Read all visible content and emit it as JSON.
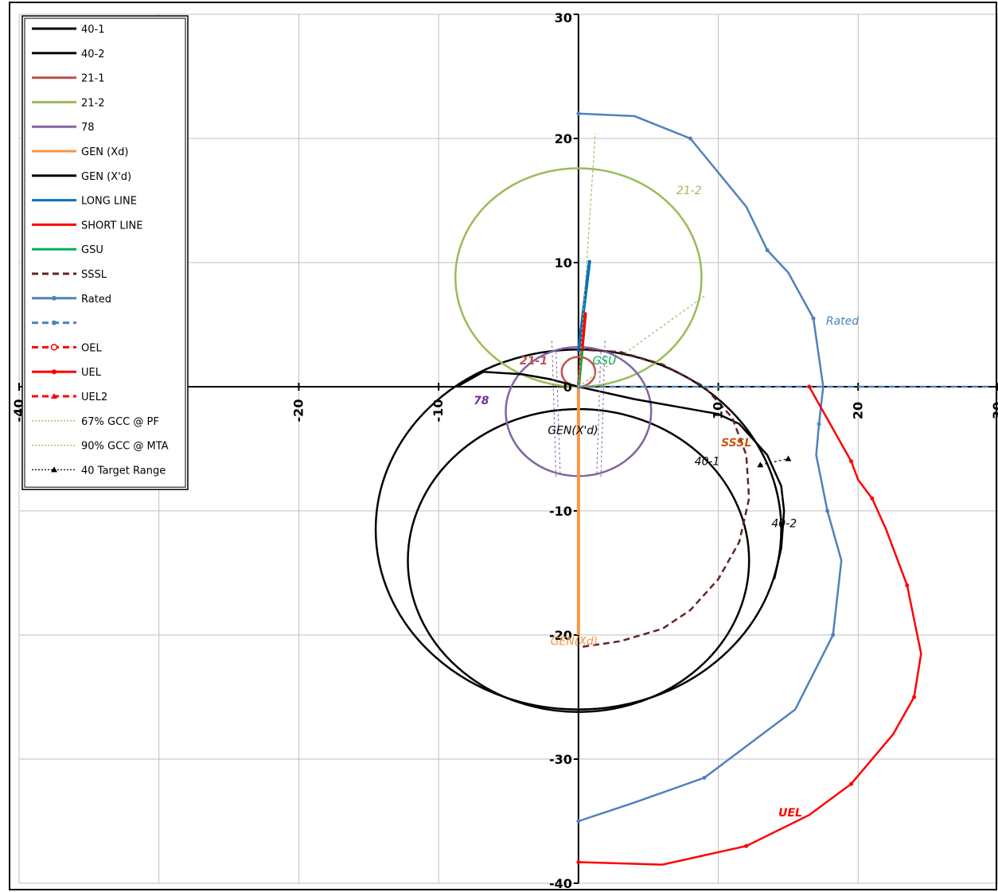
{
  "chart_data": {
    "type": "line",
    "xlim": [
      -40,
      30
    ],
    "ylim": [
      -40,
      30
    ],
    "x_ticks": [
      -40,
      -20,
      -10,
      0,
      10,
      20,
      30
    ],
    "x_tick_labels": [
      "-40",
      "-20",
      "-10",
      "0",
      "10",
      "20",
      "30"
    ],
    "y_ticks": [
      30,
      20,
      10,
      0,
      -10,
      -20,
      -30,
      -40
    ],
    "y_tick_labels": [
      "30",
      "20",
      "10",
      "0",
      "-10",
      "-20",
      "-30",
      "-40"
    ],
    "grid": true,
    "legend_position": "top-left",
    "legend": [
      {
        "label": "40-1",
        "color": "#000000",
        "dash": "solid",
        "marker": "none"
      },
      {
        "label": "40-2",
        "color": "#000000",
        "dash": "solid",
        "marker": "none"
      },
      {
        "label": "21-1",
        "color": "#c0504d",
        "dash": "solid",
        "marker": "none"
      },
      {
        "label": "21-2",
        "color": "#9bbb59",
        "dash": "solid",
        "marker": "none"
      },
      {
        "label": "78",
        "color": "#8064a2",
        "dash": "solid",
        "marker": "none"
      },
      {
        "label": "GEN (Xd)",
        "color": "#f79646",
        "dash": "solid",
        "marker": "none"
      },
      {
        "label": "GEN (X'd)",
        "color": "#000000",
        "dash": "solid",
        "marker": "none"
      },
      {
        "label": "LONG LINE",
        "color": "#0070c0",
        "dash": "solid",
        "marker": "none"
      },
      {
        "label": "SHORT LINE",
        "color": "#ff0000",
        "dash": "solid",
        "marker": "none"
      },
      {
        "label": "GSU",
        "color": "#00b050",
        "dash": "solid",
        "marker": "none"
      },
      {
        "label": "SSSL",
        "color": "#632523",
        "dash": "dash",
        "marker": "none"
      },
      {
        "label": "Rated",
        "color": "#4f81bd",
        "dash": "solid",
        "marker": "dot"
      },
      {
        "label": "",
        "color": "#4f81bd",
        "dash": "dash",
        "marker": "dot"
      },
      {
        "label": "OEL",
        "color": "#ff0000",
        "dash": "dash",
        "marker": "circle"
      },
      {
        "label": "UEL",
        "color": "#ff0000",
        "dash": "solid",
        "marker": "dot"
      },
      {
        "label": "UEL2",
        "color": "#ff0000",
        "dash": "dash",
        "marker": "triangle"
      },
      {
        "label": "67% GCC @ PF",
        "color": "#9bbb59",
        "dash": "dot",
        "marker": "none"
      },
      {
        "label": "90% GCC @ MTA",
        "color": "#9bbb59",
        "dash": "dot",
        "marker": "none"
      },
      {
        "label": "40 Target Range",
        "color": "#000000",
        "dash": "dot",
        "marker": "triangle"
      }
    ],
    "series": [
      {
        "name": "40-1",
        "shape": "circle",
        "center": [
          0,
          -11.5
        ],
        "radius": 14.5,
        "color": "#000000"
      },
      {
        "name": "40-2",
        "shape": "circle",
        "center": [
          0,
          -14
        ],
        "radius": 12.2,
        "color": "#000000"
      },
      {
        "name": "21-1",
        "shape": "circle",
        "center": [
          0,
          1.2
        ],
        "radius": 1.2,
        "color": "#c0504d"
      },
      {
        "name": "21-2",
        "shape": "circle",
        "center": [
          0,
          8.8
        ],
        "radius": 8.8,
        "color": "#9bbb59"
      },
      {
        "name": "78",
        "shape": "circle",
        "center": [
          0,
          -2
        ],
        "radius": 5.2,
        "color": "#8064a2"
      },
      {
        "name": "GEN (Xd)",
        "x": [
          0,
          0
        ],
        "y": [
          0,
          -20
        ],
        "color": "#f79646"
      },
      {
        "name": "GEN (X'd)",
        "x": [
          -8.7,
          -6.8,
          -4,
          -2,
          0,
          4,
          8,
          10,
          11.5,
          13.5,
          14.5,
          14.7,
          14.5,
          14
        ],
        "y": [
          0,
          1.2,
          1.0,
          0.6,
          0,
          -1,
          -1.8,
          -2.2,
          -3,
          -5.5,
          -8,
          -10,
          -13,
          -15.5
        ],
        "color": "#000000"
      },
      {
        "name": "LONG LINE",
        "x": [
          0,
          0.8
        ],
        "y": [
          2.8,
          10.2
        ],
        "color": "#0070c0"
      },
      {
        "name": "SHORT LINE",
        "x": [
          0,
          0.5
        ],
        "y": [
          0,
          6
        ],
        "color": "#ff0000"
      },
      {
        "name": "GSU",
        "x": [
          0,
          0.3
        ],
        "y": [
          0,
          3
        ],
        "color": "#00b050"
      },
      {
        "name": "SSSL",
        "x": [
          0,
          3,
          6,
          9,
          11,
          12,
          12.2,
          11.5,
          10,
          8,
          6,
          3,
          0
        ],
        "y": [
          3,
          2.8,
          1.8,
          0,
          -2.5,
          -5.5,
          -9,
          -12.5,
          -15.5,
          -18,
          -19.5,
          -20.5,
          -21
        ],
        "color": "#632523"
      },
      {
        "name": "Rated",
        "x": [
          0,
          4,
          8,
          12,
          13.5,
          15,
          16.8,
          17.5,
          17.2,
          17,
          17.8,
          18.8,
          18.2,
          15.5,
          9,
          4,
          0
        ],
        "y": [
          22,
          21.8,
          20,
          14.5,
          11,
          9.2,
          5.5,
          0,
          -3,
          -5.5,
          -10,
          -14,
          -20,
          -26,
          -31.5,
          -33.5,
          -35
        ],
        "color": "#4f81bd"
      },
      {
        "name": "",
        "x": [
          0,
          29.5
        ],
        "y": [
          0,
          0
        ],
        "color": "#4f81bd"
      },
      {
        "name": "UEL",
        "x": [
          16.5,
          18,
          19.5,
          20,
          21,
          22,
          23.5,
          24.5,
          24,
          22.5,
          19.5,
          16.5,
          12,
          6,
          0
        ],
        "y": [
          0,
          -3,
          -6,
          -7.5,
          -9,
          -11.5,
          -16,
          -21.5,
          -25,
          -28,
          -32,
          -34.5,
          -37,
          -38.5,
          -38.3
        ],
        "color": "#ff0000"
      },
      {
        "name": "67% GCC @ PF",
        "x": [
          0,
          1.2
        ],
        "y": [
          0,
          20.4
        ],
        "color": "#9bbb59"
      },
      {
        "name": "90% GCC @ MTA",
        "x": [
          0,
          9
        ],
        "y": [
          0,
          7.3
        ],
        "color": "#9bbb59"
      },
      {
        "name": "40 Target Range",
        "x": [
          13,
          15
        ],
        "y": [
          -6.3,
          -5.8
        ],
        "color": "#000000"
      }
    ],
    "annotations": [
      {
        "text": "21-2",
        "x": 7,
        "y": 15.5,
        "color": "#9bbb59"
      },
      {
        "text": "21-1",
        "x": -4.2,
        "y": 1.8,
        "color": "#c0504d"
      },
      {
        "text": "GSU",
        "x": 1,
        "y": 1.8,
        "color": "#00b050"
      },
      {
        "text": "78",
        "x": -7.5,
        "y": -1.4,
        "color": "#7030a0"
      },
      {
        "text": "GEN(X'd)",
        "x": -2.2,
        "y": -3.8,
        "color": "#000000"
      },
      {
        "text": "Rated",
        "x": 17.7,
        "y": 5,
        "color": "#4f81bd"
      },
      {
        "text": "SSSL",
        "x": 10.2,
        "y": -4.8,
        "color": "#c55a11"
      },
      {
        "text": "40-1",
        "x": 8.3,
        "y": -6.3,
        "color": "#000000"
      },
      {
        "text": "40-2",
        "x": 13.8,
        "y": -11.3,
        "color": "#000000"
      },
      {
        "text": "GEN(Xd)",
        "x": -2,
        "y": -20.8,
        "color": "#f79646"
      },
      {
        "text": "UEL",
        "x": 14.3,
        "y": -34.6,
        "color": "#ff0000"
      }
    ]
  }
}
